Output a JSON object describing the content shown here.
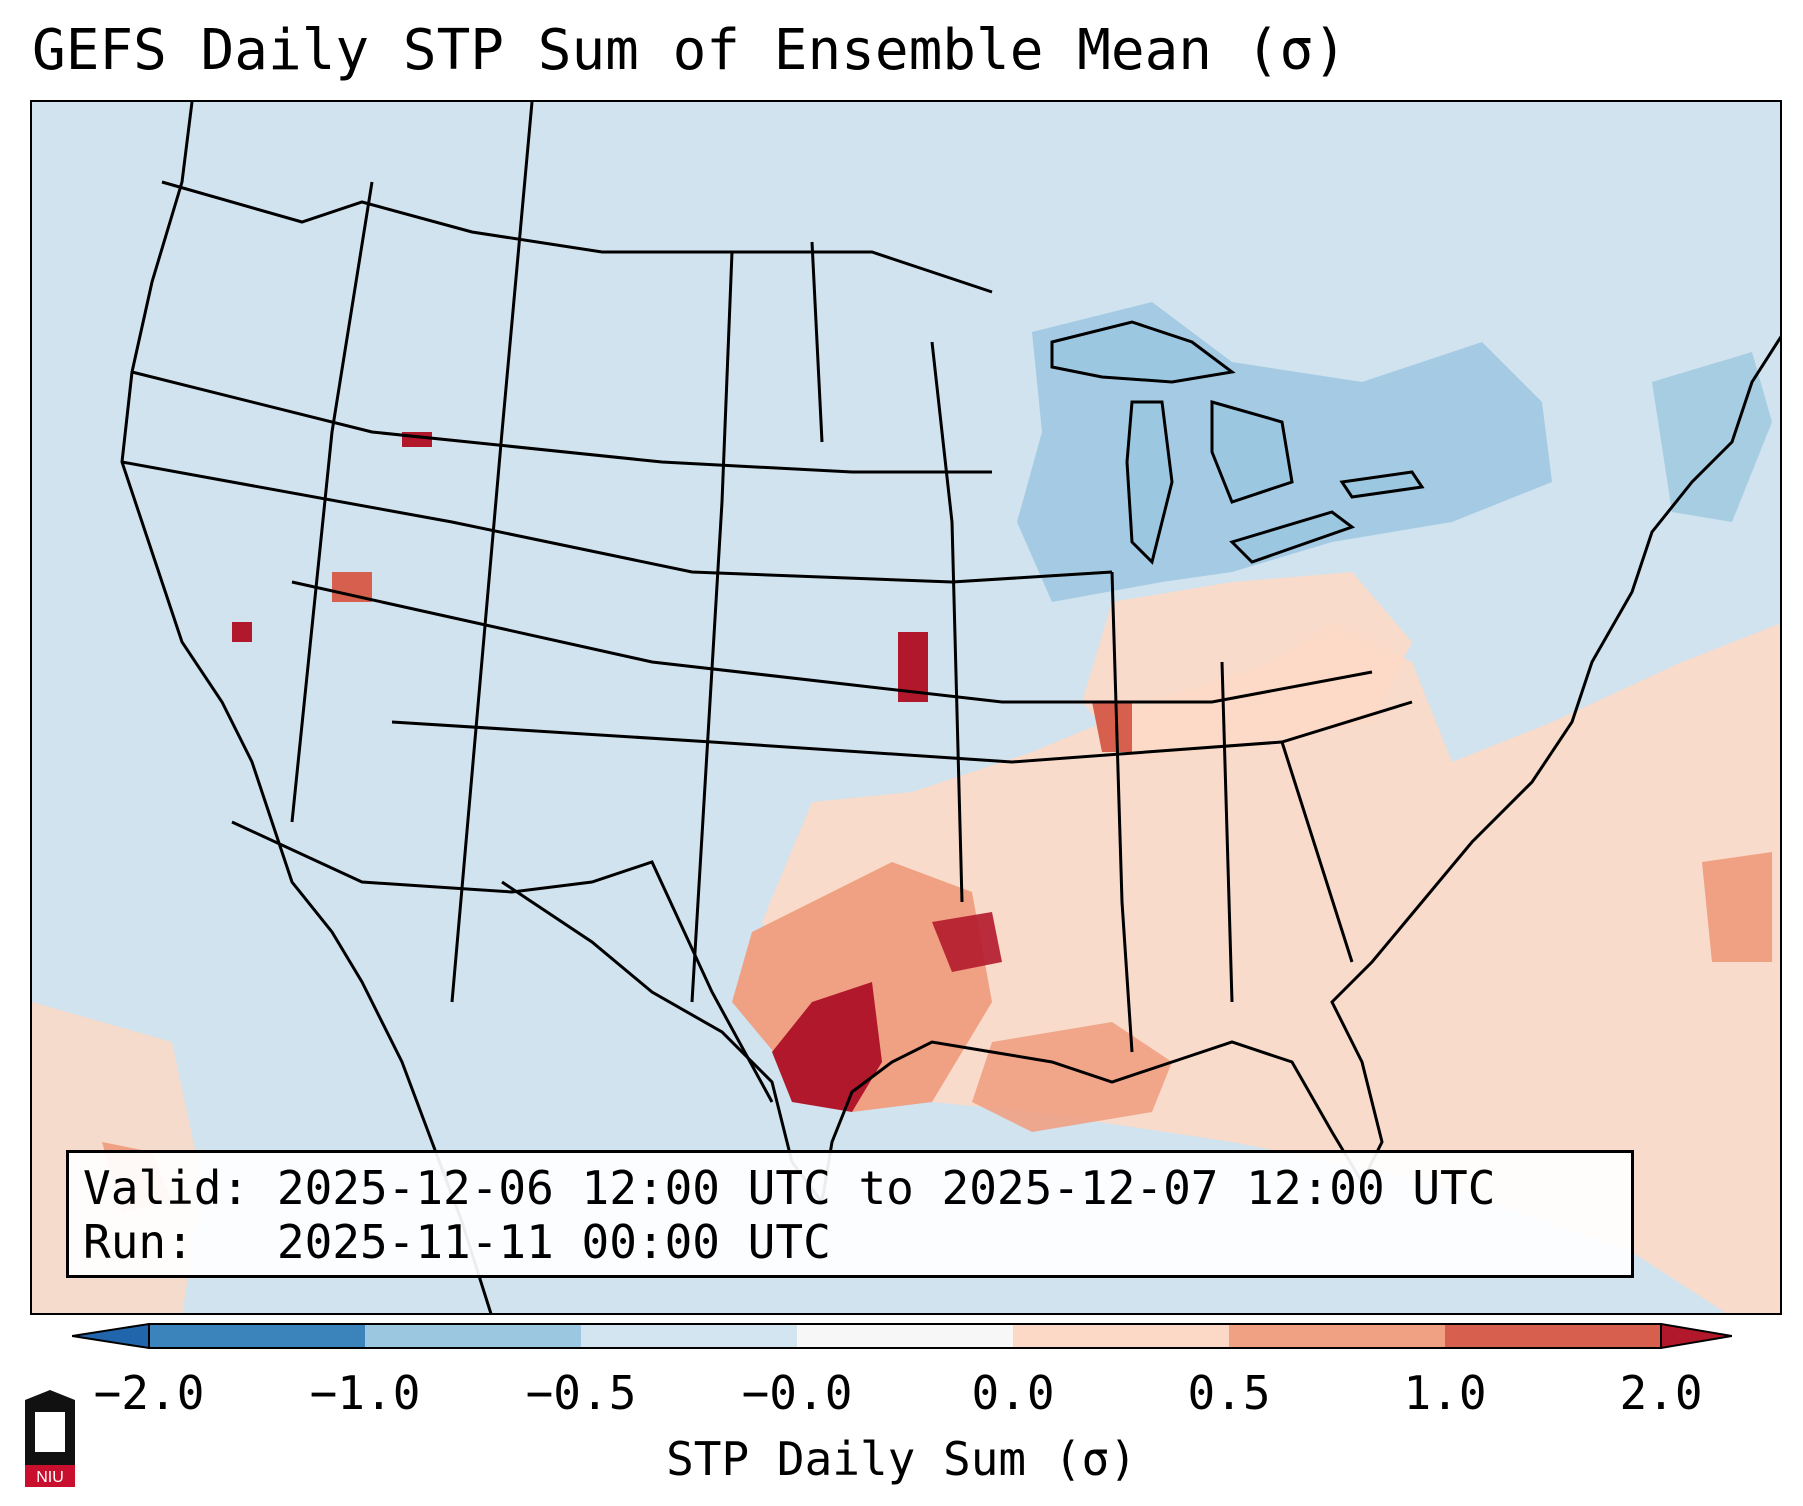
{
  "title": "GEFS Daily STP Sum of Ensemble Mean (σ)",
  "valid_label": "Valid:",
  "valid_value": "2025-12-06 12:00 UTC to 2025-12-07 12:00 UTC",
  "run_label": "Run:",
  "run_value": "2025-11-11 00:00 UTC",
  "colorbar": {
    "label": "STP Daily Sum (σ)",
    "ticks": [
      "−2.0",
      "−1.0",
      "−0.5",
      "−0.0",
      "0.0",
      "0.5",
      "1.0",
      "2.0"
    ],
    "colors": [
      "#3a84bb",
      "#9cc7e0",
      "#d2e5f0",
      "#f7f7f7",
      "#fcd9c6",
      "#f0a083",
      "#d6604d",
      "#b2182b"
    ]
  },
  "logo": {
    "text": "NIU",
    "color": "#c8102e"
  },
  "map": {
    "background_class_color": "#d0e3ef",
    "field_note": "STP anomaly highest over south Texas and Louisiana, moderate across Gulf Coast and Southeast"
  }
}
